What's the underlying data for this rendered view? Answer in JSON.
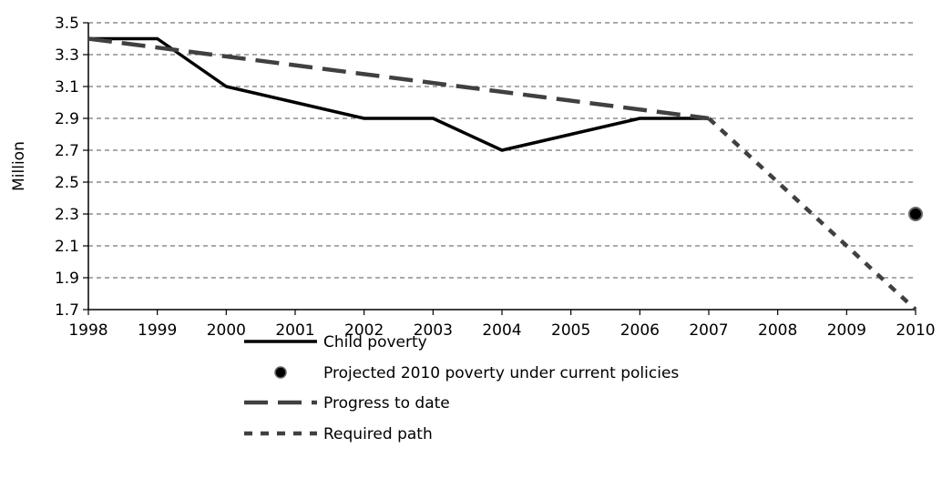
{
  "chart_data": {
    "type": "line",
    "title": "",
    "xlabel": "",
    "ylabel": "Million",
    "x": [
      1998,
      1999,
      2000,
      2001,
      2002,
      2003,
      2004,
      2005,
      2006,
      2007,
      2008,
      2009,
      2010
    ],
    "xticks": [
      "1998",
      "1999",
      "2000",
      "2001",
      "2002",
      "2003",
      "2004",
      "2005",
      "2006",
      "2007",
      "2008",
      "2009",
      "2010"
    ],
    "ylim": [
      1.7,
      3.5
    ],
    "yticks": [
      "1.7",
      "1.9",
      "2.1",
      "2.3",
      "2.5",
      "2.7",
      "2.9",
      "3.1",
      "3.3",
      "3.5"
    ],
    "grid": true,
    "legend_position": "bottom",
    "series": [
      {
        "name": "Child poverty",
        "style": "solid",
        "color": "#000000",
        "points": [
          [
            1998,
            3.4
          ],
          [
            1999,
            3.4
          ],
          [
            2000,
            3.1
          ],
          [
            2001,
            3.0
          ],
          [
            2002,
            2.9
          ],
          [
            2003,
            2.9
          ],
          [
            2004,
            2.7
          ],
          [
            2005,
            2.8
          ],
          [
            2006,
            2.9
          ],
          [
            2007,
            2.9
          ]
        ]
      },
      {
        "name": "Projected 2010 poverty under current policies",
        "style": "marker",
        "color": "#000000",
        "points": [
          [
            2010,
            2.3
          ]
        ]
      },
      {
        "name": "Progress to date",
        "style": "long-dash",
        "color": "#404040",
        "points": [
          [
            1998,
            3.4
          ],
          [
            2007,
            2.9
          ]
        ]
      },
      {
        "name": "Required path",
        "style": "short-dash",
        "color": "#404040",
        "points": [
          [
            2007,
            2.9
          ],
          [
            2010,
            1.7
          ]
        ]
      }
    ]
  }
}
